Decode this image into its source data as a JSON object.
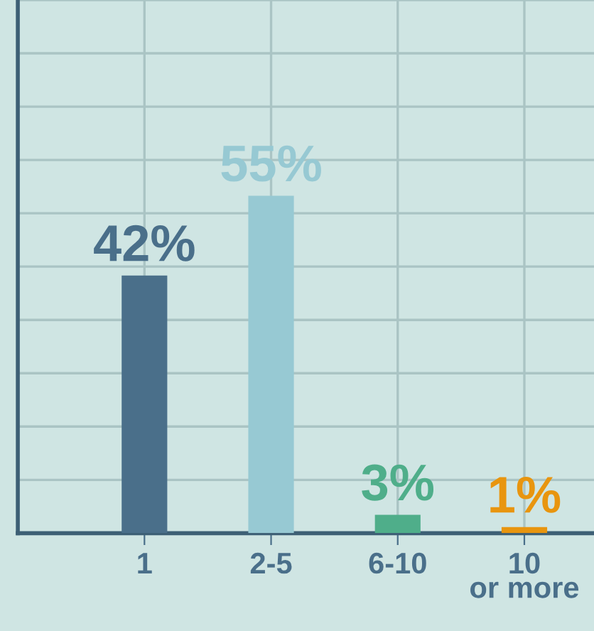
{
  "chart_data": {
    "type": "bar",
    "categories": [
      "1",
      "2-5",
      "6-10",
      "10\nor more"
    ],
    "values": [
      42,
      55,
      3,
      1
    ],
    "colors": [
      "#4a6f8a",
      "#97c9d3",
      "#4fae8a",
      "#e8950f"
    ],
    "value_labels": [
      "42%",
      "55%",
      "3%",
      "1%"
    ],
    "grid": true,
    "tick_labels": "x"
  }
}
